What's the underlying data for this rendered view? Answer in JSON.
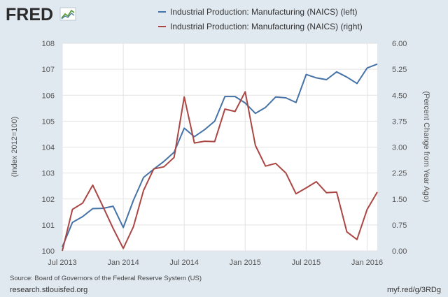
{
  "logo": {
    "text": "FRED"
  },
  "chart_data": {
    "type": "line",
    "xlabel": "",
    "x_ticks": [
      "Jul 2013",
      "Jan 2014",
      "Jul 2014",
      "Jan 2015",
      "Jul 2015",
      "Jan 2016"
    ],
    "x": [
      "2013-07",
      "2013-08",
      "2013-09",
      "2013-10",
      "2013-11",
      "2013-12",
      "2014-01",
      "2014-02",
      "2014-03",
      "2014-04",
      "2014-05",
      "2014-06",
      "2014-07",
      "2014-08",
      "2014-09",
      "2014-10",
      "2014-11",
      "2014-12",
      "2015-01",
      "2015-02",
      "2015-03",
      "2015-04",
      "2015-05",
      "2015-06",
      "2015-07",
      "2015-08",
      "2015-09",
      "2015-10",
      "2015-11",
      "2015-12",
      "2016-01",
      "2016-02"
    ],
    "y_left": {
      "label": "(Index 2012=100)",
      "range": [
        100,
        108
      ],
      "ticks": [
        "100",
        "101",
        "102",
        "103",
        "104",
        "105",
        "106",
        "107",
        "108"
      ]
    },
    "y_right": {
      "label": "(Percent Change from Year Ago)",
      "range": [
        0,
        6
      ],
      "ticks": [
        "0.00",
        "0.75",
        "1.50",
        "2.25",
        "3.00",
        "3.75",
        "4.50",
        "5.25",
        "6.00"
      ]
    },
    "grid": true,
    "legend_placement": "top",
    "series": [
      {
        "name": "Industrial Production: Manufacturing (NAICS) (left)",
        "axis": "left",
        "color": "#4572a7",
        "values": [
          100.15,
          101.1,
          101.32,
          101.63,
          101.64,
          101.72,
          100.9,
          101.95,
          102.83,
          103.15,
          103.45,
          103.8,
          104.73,
          104.4,
          104.67,
          105.0,
          105.95,
          105.95,
          105.7,
          105.3,
          105.53,
          105.93,
          105.9,
          105.72,
          106.8,
          106.67,
          106.6,
          106.9,
          106.7,
          106.45,
          107.05,
          107.2
        ]
      },
      {
        "name": "Industrial Production: Manufacturing (NAICS) (right)",
        "axis": "right",
        "color": "#aa4643",
        "values": [
          0.0,
          1.2,
          1.38,
          1.9,
          1.28,
          0.65,
          0.07,
          0.7,
          1.75,
          2.37,
          2.43,
          2.7,
          4.45,
          3.12,
          3.17,
          3.16,
          4.1,
          4.03,
          4.6,
          3.05,
          2.45,
          2.53,
          2.25,
          1.65,
          1.82,
          2.0,
          1.68,
          1.7,
          0.55,
          0.33,
          1.2,
          1.7
        ]
      }
    ]
  },
  "footer": {
    "source": "Source: Board of Governors of the Federal Reserve System (US)",
    "site": "research.stlouisfed.org",
    "shortlink": "myf.red/g/3RDg"
  }
}
